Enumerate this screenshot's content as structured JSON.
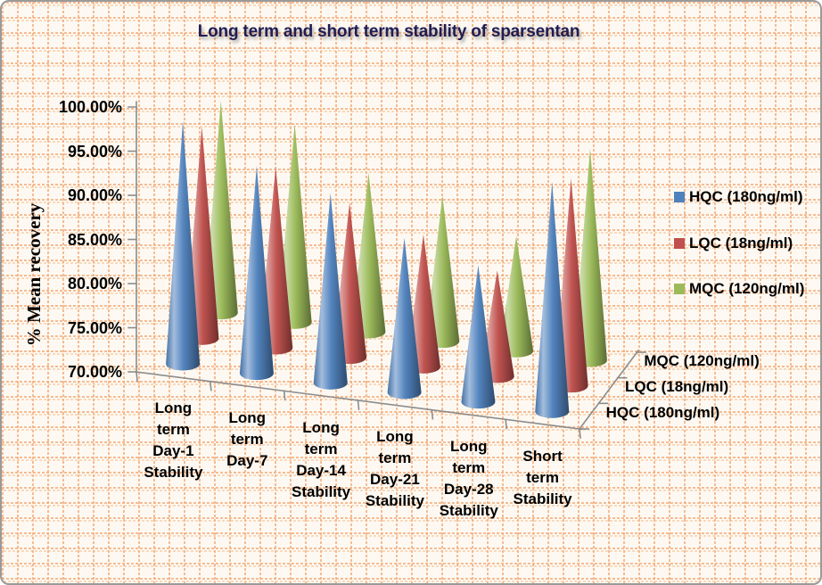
{
  "title": "Long term  and short term stability of sparsentan",
  "colors": {
    "title_text": "#211C52",
    "axis_line": "#8C8C8C",
    "pattern_accent": "#F3B183",
    "background": "#FDF9F2",
    "hqc_blue": "#4F81BD",
    "lqc_red": "#C0504D",
    "mqc_green": "#9BBB59"
  },
  "y_axis": {
    "title": "% Mean recovery",
    "ticks": [
      "100.00%",
      "95.00%",
      "90.00%",
      "85.00%",
      "80.00%",
      "75.00%",
      "70.00%"
    ]
  },
  "x_axis": {
    "multiline": [
      [
        "Long",
        "term",
        "Day-1",
        "Stability"
      ],
      [
        "Long",
        "term",
        "Day-7"
      ],
      [
        "Long",
        "term",
        "Day-14",
        "Stability"
      ],
      [
        "Long",
        "term",
        "Day-21",
        "Stability"
      ],
      [
        "Long",
        "term",
        "Day-28",
        "Stability"
      ],
      [
        "Short",
        "term",
        "Stability"
      ]
    ]
  },
  "depth_axis": {
    "labels": [
      "MQC (120ng/ml)",
      "LQC (18ng/ml)",
      "HQC (180ng/ml)"
    ]
  },
  "legend": {
    "items": [
      {
        "label": "HQC (180ng/ml)",
        "color": "#4F81BD"
      },
      {
        "label": "LQC (18ng/ml)",
        "color": "#C0504D"
      },
      {
        "label": "MQC (120ng/ml)",
        "color": "#9BBB59"
      }
    ]
  },
  "chart_data": {
    "type": "bar",
    "variant": "3d-cone",
    "title": "Long term  and short term stability of sparsentan",
    "categories": [
      "Long term Day-1 Stability",
      "Long term Day-7",
      "Long term Day-14 Stability",
      "Long term Day-21 Stability",
      "Long term Day-28 Stability",
      "Short term Stability"
    ],
    "series": [
      {
        "name": "HQC (180ng/ml)",
        "color": "#4F81BD",
        "depth_row": "front",
        "values": [
          97.5,
          93.5,
          91.5,
          87.5,
          85.5,
          96.0
        ]
      },
      {
        "name": "LQC (18ng/ml)",
        "color": "#C0504D",
        "depth_row": "middle",
        "values": [
          94.0,
          90.5,
          87.5,
          85.0,
          82.0,
          93.5
        ]
      },
      {
        "name": "MQC (120ng/ml)",
        "color": "#9BBB59",
        "depth_row": "back",
        "values": [
          94.0,
          92.5,
          88.0,
          86.5,
          83.0,
          94.0
        ]
      }
    ],
    "xlabel": "",
    "ylabel": "% Mean recovery",
    "ylim": [
      70,
      100
    ],
    "ytick_step": 5,
    "ytick_format": "percent-2dp",
    "legend_position": "right",
    "grid": false,
    "row_order_front_to_back": [
      "HQC (180ng/ml)",
      "LQC (18ng/ml)",
      "MQC (120ng/ml)"
    ]
  }
}
